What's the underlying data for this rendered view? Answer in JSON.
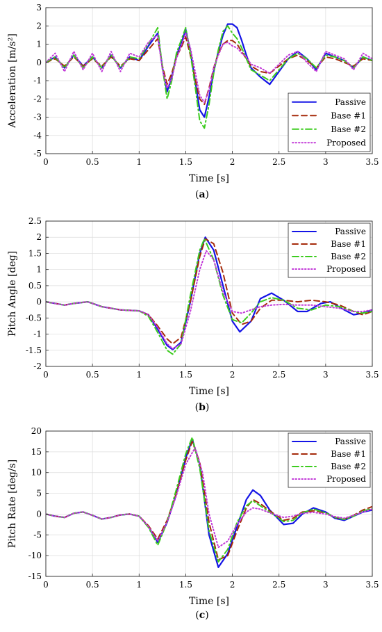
{
  "figure": {
    "colors": {
      "Passive": "#1414e6",
      "Base #1": "#a52a0a",
      "Base #2": "#3ccc1e",
      "Proposed": "#c23ad8"
    },
    "styles": {
      "Passive": "solid",
      "Base #1": "dashed",
      "Base #2": "dashdot",
      "Proposed": "dotted"
    }
  },
  "chart_data": [
    {
      "type": "line",
      "caption_open": "(",
      "caption_letter": "a",
      "caption_close": ")",
      "xlabel": "Time [s]",
      "ylabel": "Acceleration [m/s²]",
      "xlim": [
        0,
        3.5
      ],
      "ylim": [
        -5,
        3
      ],
      "xticks": [
        0,
        0.5,
        1,
        1.5,
        2,
        2.5,
        3,
        3.5
      ],
      "yticks": [
        -5,
        -4,
        -3,
        -2,
        -1,
        0,
        1,
        2,
        3
      ],
      "grid": true,
      "legend_position": "bottom-right",
      "series": [
        {
          "name": "Passive",
          "x": [
            0,
            0.1,
            0.2,
            0.3,
            0.4,
            0.5,
            0.6,
            0.7,
            0.8,
            0.9,
            1.0,
            1.1,
            1.2,
            1.25,
            1.3,
            1.35,
            1.4,
            1.45,
            1.5,
            1.55,
            1.6,
            1.65,
            1.7,
            1.75,
            1.8,
            1.85,
            1.9,
            1.95,
            2.0,
            2.05,
            2.1,
            2.15,
            2.2,
            2.3,
            2.4,
            2.5,
            2.6,
            2.7,
            2.8,
            2.9,
            3.0,
            3.1,
            3.2,
            3.3,
            3.4,
            3.5
          ],
          "y": [
            0,
            0.3,
            -0.3,
            0.4,
            -0.2,
            0.3,
            -0.3,
            0.4,
            -0.3,
            0.3,
            0.1,
            0.9,
            1.6,
            -0.3,
            -1.6,
            -0.8,
            0.4,
            1.0,
            1.8,
            0.6,
            -1.0,
            -2.6,
            -3.0,
            -1.9,
            -0.5,
            0.6,
            1.5,
            2.1,
            2.1,
            1.9,
            1.2,
            0.4,
            -0.3,
            -0.8,
            -1.2,
            -0.5,
            0.2,
            0.6,
            0.2,
            -0.4,
            0.5,
            0.3,
            0.1,
            -0.3,
            0.3,
            0.1
          ]
        },
        {
          "name": "Base #1",
          "x": [
            0,
            0.1,
            0.2,
            0.3,
            0.4,
            0.5,
            0.6,
            0.7,
            0.8,
            0.9,
            1.0,
            1.1,
            1.2,
            1.25,
            1.3,
            1.35,
            1.4,
            1.45,
            1.5,
            1.55,
            1.6,
            1.65,
            1.7,
            1.75,
            1.8,
            1.85,
            1.9,
            1.95,
            2.0,
            2.05,
            2.1,
            2.15,
            2.2,
            2.3,
            2.4,
            2.5,
            2.6,
            2.7,
            2.8,
            2.9,
            3.0,
            3.1,
            3.2,
            3.3,
            3.4,
            3.5
          ],
          "y": [
            0,
            0.2,
            -0.2,
            0.3,
            -0.2,
            0.2,
            -0.2,
            0.3,
            -0.2,
            0.2,
            0.1,
            0.7,
            1.3,
            -0.2,
            -1.2,
            -0.6,
            0.3,
            0.8,
            1.4,
            0.4,
            -0.9,
            -2.0,
            -2.3,
            -1.4,
            -0.3,
            0.5,
            1.0,
            1.2,
            1.2,
            1.0,
            0.6,
            0.2,
            -0.2,
            -0.5,
            -0.6,
            -0.2,
            0.2,
            0.4,
            0.1,
            -0.3,
            0.3,
            0.2,
            0.0,
            -0.2,
            0.2,
            0.1
          ]
        },
        {
          "name": "Base #2",
          "x": [
            0,
            0.1,
            0.2,
            0.3,
            0.4,
            0.5,
            0.6,
            0.7,
            0.8,
            0.9,
            1.0,
            1.1,
            1.2,
            1.25,
            1.3,
            1.35,
            1.4,
            1.45,
            1.5,
            1.55,
            1.6,
            1.65,
            1.7,
            1.75,
            1.8,
            1.85,
            1.9,
            1.95,
            2.0,
            2.05,
            2.1,
            2.15,
            2.2,
            2.3,
            2.4,
            2.5,
            2.6,
            2.7,
            2.8,
            2.9,
            3.0,
            3.1,
            3.2,
            3.3,
            3.4,
            3.5
          ],
          "y": [
            0,
            0.3,
            -0.3,
            0.4,
            -0.3,
            0.3,
            -0.3,
            0.4,
            -0.3,
            0.3,
            0.2,
            1.0,
            1.9,
            -0.3,
            -2.0,
            -1.0,
            0.5,
            1.2,
            1.9,
            0.5,
            -1.3,
            -3.2,
            -3.6,
            -2.3,
            -0.6,
            0.7,
            1.7,
            2.0,
            1.6,
            1.3,
            0.8,
            0.2,
            -0.4,
            -0.7,
            -1.0,
            -0.4,
            0.2,
            0.5,
            0.2,
            -0.3,
            0.4,
            0.3,
            0.1,
            -0.3,
            0.3,
            0.1
          ]
        },
        {
          "name": "Proposed",
          "x": [
            0,
            0.1,
            0.2,
            0.3,
            0.4,
            0.5,
            0.6,
            0.7,
            0.8,
            0.9,
            1.0,
            1.1,
            1.2,
            1.25,
            1.3,
            1.35,
            1.4,
            1.45,
            1.5,
            1.55,
            1.6,
            1.65,
            1.7,
            1.75,
            1.8,
            1.85,
            1.9,
            1.95,
            2.0,
            2.05,
            2.1,
            2.15,
            2.2,
            2.3,
            2.4,
            2.5,
            2.6,
            2.7,
            2.8,
            2.9,
            3.0,
            3.1,
            3.2,
            3.3,
            3.4,
            3.5
          ],
          "y": [
            0,
            0.5,
            -0.5,
            0.6,
            -0.4,
            0.5,
            -0.5,
            0.6,
            -0.5,
            0.5,
            0.3,
            1.1,
            1.5,
            -0.4,
            -1.4,
            -0.9,
            0.2,
            0.9,
            1.6,
            0.8,
            -0.5,
            -1.8,
            -2.2,
            -1.5,
            -0.3,
            0.4,
            1.0,
            1.1,
            0.9,
            0.8,
            0.5,
            0.3,
            -0.1,
            -0.3,
            -0.6,
            -0.1,
            0.4,
            0.6,
            0.0,
            -0.5,
            0.6,
            0.4,
            0.2,
            -0.4,
            0.5,
            0.2
          ]
        }
      ]
    },
    {
      "type": "line",
      "caption_open": "(",
      "caption_letter": "b",
      "caption_close": ")",
      "xlabel": "Time [s]",
      "ylabel": "Pitch Angle [deg]",
      "xlim": [
        0,
        3.5
      ],
      "ylim": [
        -2,
        2.5
      ],
      "xticks": [
        0,
        0.5,
        1,
        1.5,
        2,
        2.5,
        3,
        3.5
      ],
      "yticks": [
        -2,
        -1.5,
        -1,
        -0.5,
        0,
        0.5,
        1,
        1.5,
        2,
        2.5
      ],
      "grid": true,
      "legend_position": "top-right",
      "series": [
        {
          "name": "Passive",
          "x": [
            0,
            0.1,
            0.2,
            0.3,
            0.45,
            0.6,
            0.8,
            1.0,
            1.1,
            1.2,
            1.3,
            1.36,
            1.45,
            1.55,
            1.65,
            1.71,
            1.8,
            1.9,
            2.0,
            2.08,
            2.2,
            2.3,
            2.42,
            2.55,
            2.7,
            2.8,
            2.95,
            3.05,
            3.2,
            3.3,
            3.4,
            3.5
          ],
          "y": [
            0,
            -0.05,
            -0.1,
            -0.05,
            0.0,
            -0.15,
            -0.25,
            -0.28,
            -0.4,
            -0.85,
            -1.35,
            -1.48,
            -1.25,
            0.0,
            1.5,
            2.0,
            1.6,
            0.5,
            -0.6,
            -0.93,
            -0.6,
            0.1,
            0.27,
            0.05,
            -0.3,
            -0.3,
            -0.05,
            0.0,
            -0.25,
            -0.4,
            -0.35,
            -0.25
          ]
        },
        {
          "name": "Base #1",
          "x": [
            0,
            0.1,
            0.2,
            0.3,
            0.45,
            0.6,
            0.8,
            1.0,
            1.1,
            1.2,
            1.3,
            1.36,
            1.45,
            1.55,
            1.65,
            1.71,
            1.8,
            1.9,
            2.0,
            2.1,
            2.2,
            2.3,
            2.42,
            2.55,
            2.7,
            2.85,
            3.0,
            3.15,
            3.3,
            3.4,
            3.5
          ],
          "y": [
            0,
            -0.05,
            -0.1,
            -0.05,
            0.0,
            -0.15,
            -0.25,
            -0.28,
            -0.4,
            -0.75,
            -1.15,
            -1.3,
            -1.1,
            0.0,
            1.4,
            1.95,
            1.8,
            0.9,
            -0.35,
            -0.7,
            -0.6,
            -0.2,
            0.05,
            0.05,
            0.0,
            0.05,
            0.0,
            -0.1,
            -0.3,
            -0.4,
            -0.3
          ]
        },
        {
          "name": "Base #2",
          "x": [
            0,
            0.1,
            0.2,
            0.3,
            0.45,
            0.6,
            0.8,
            1.0,
            1.1,
            1.2,
            1.3,
            1.36,
            1.45,
            1.55,
            1.65,
            1.7,
            1.8,
            1.9,
            2.0,
            2.1,
            2.2,
            2.3,
            2.42,
            2.55,
            2.7,
            2.85,
            3.0,
            3.15,
            3.3,
            3.4,
            3.5
          ],
          "y": [
            0,
            -0.05,
            -0.1,
            -0.05,
            0.0,
            -0.15,
            -0.25,
            -0.28,
            -0.45,
            -0.95,
            -1.5,
            -1.62,
            -1.3,
            0.2,
            1.6,
            1.95,
            1.3,
            0.2,
            -0.55,
            -0.65,
            -0.35,
            0.0,
            0.13,
            0.05,
            -0.2,
            -0.25,
            -0.1,
            -0.15,
            -0.3,
            -0.35,
            -0.3
          ]
        },
        {
          "name": "Proposed",
          "x": [
            0,
            0.1,
            0.2,
            0.3,
            0.45,
            0.6,
            0.8,
            1.0,
            1.1,
            1.2,
            1.3,
            1.36,
            1.45,
            1.55,
            1.65,
            1.72,
            1.8,
            1.9,
            2.0,
            2.1,
            2.2,
            2.3,
            2.42,
            2.55,
            2.7,
            2.85,
            3.0,
            3.15,
            3.3,
            3.4,
            3.5
          ],
          "y": [
            0,
            -0.05,
            -0.1,
            -0.05,
            0.0,
            -0.15,
            -0.25,
            -0.28,
            -0.4,
            -0.8,
            -1.3,
            -1.45,
            -1.3,
            -0.3,
            1.0,
            1.58,
            1.3,
            0.3,
            -0.3,
            -0.35,
            -0.25,
            -0.15,
            -0.1,
            -0.08,
            -0.1,
            -0.1,
            -0.15,
            -0.2,
            -0.3,
            -0.3,
            -0.25
          ]
        }
      ]
    },
    {
      "type": "line",
      "caption_open": "(",
      "caption_letter": "c",
      "caption_close": ")",
      "xlabel": "Time [s]",
      "ylabel": "Pitch Rate [deg/s]",
      "xlim": [
        0,
        3.5
      ],
      "ylim": [
        -15,
        20
      ],
      "xticks": [
        0,
        0.5,
        1,
        1.5,
        2,
        2.5,
        3,
        3.5
      ],
      "yticks": [
        -15,
        -10,
        -5,
        0,
        5,
        10,
        15,
        20
      ],
      "grid": true,
      "legend_position": "top-right",
      "series": [
        {
          "name": "Passive",
          "x": [
            0,
            0.1,
            0.2,
            0.3,
            0.4,
            0.5,
            0.6,
            0.7,
            0.8,
            0.9,
            1.0,
            1.1,
            1.2,
            1.3,
            1.4,
            1.5,
            1.57,
            1.65,
            1.75,
            1.85,
            1.95,
            2.05,
            2.15,
            2.22,
            2.3,
            2.4,
            2.55,
            2.65,
            2.75,
            2.87,
            3.0,
            3.1,
            3.2,
            3.3,
            3.4,
            3.5
          ],
          "y": [
            0,
            -0.5,
            -0.8,
            0.2,
            0.5,
            -0.3,
            -1.2,
            -0.8,
            -0.2,
            0.0,
            -0.5,
            -3.0,
            -6.8,
            -2.0,
            5.0,
            13.5,
            18.0,
            12.0,
            -5.0,
            -12.8,
            -9.5,
            -3.0,
            3.5,
            5.8,
            4.5,
            1.0,
            -2.5,
            -2.2,
            0.0,
            1.5,
            0.5,
            -1.0,
            -1.5,
            -0.5,
            0.5,
            1.0
          ]
        },
        {
          "name": "Base #1",
          "x": [
            0,
            0.1,
            0.2,
            0.3,
            0.4,
            0.5,
            0.6,
            0.7,
            0.8,
            0.9,
            1.0,
            1.1,
            1.2,
            1.3,
            1.4,
            1.5,
            1.57,
            1.65,
            1.75,
            1.85,
            1.95,
            2.05,
            2.15,
            2.22,
            2.3,
            2.4,
            2.55,
            2.65,
            2.75,
            2.87,
            3.0,
            3.1,
            3.2,
            3.3,
            3.4,
            3.5
          ],
          "y": [
            0,
            -0.5,
            -0.8,
            0.2,
            0.5,
            -0.3,
            -1.2,
            -0.8,
            -0.2,
            0.0,
            -0.5,
            -2.8,
            -6.0,
            -1.5,
            5.0,
            13.0,
            17.5,
            12.5,
            -2.0,
            -11.0,
            -10.0,
            -4.0,
            1.5,
            3.5,
            2.5,
            0.8,
            -1.5,
            -1.0,
            0.5,
            0.8,
            0.3,
            -0.8,
            -1.2,
            -0.3,
            1.0,
            1.8
          ]
        },
        {
          "name": "Base #2",
          "x": [
            0,
            0.1,
            0.2,
            0.3,
            0.4,
            0.5,
            0.6,
            0.7,
            0.8,
            0.9,
            1.0,
            1.1,
            1.2,
            1.3,
            1.4,
            1.5,
            1.57,
            1.65,
            1.75,
            1.85,
            1.95,
            2.05,
            2.15,
            2.22,
            2.3,
            2.4,
            2.55,
            2.65,
            2.75,
            2.87,
            3.0,
            3.1,
            3.2,
            3.3,
            3.4,
            3.5
          ],
          "y": [
            0,
            -0.5,
            -0.8,
            0.2,
            0.5,
            -0.3,
            -1.2,
            -0.8,
            -0.2,
            0.0,
            -0.5,
            -3.2,
            -7.5,
            -2.0,
            6.0,
            14.5,
            18.5,
            11.0,
            -4.0,
            -11.5,
            -8.5,
            -2.0,
            2.0,
            3.2,
            2.0,
            0.5,
            -1.8,
            -1.5,
            0.3,
            1.2,
            0.3,
            -0.8,
            -1.3,
            -0.5,
            0.8,
            1.3
          ]
        },
        {
          "name": "Proposed",
          "x": [
            0,
            0.1,
            0.2,
            0.3,
            0.4,
            0.5,
            0.6,
            0.7,
            0.8,
            0.9,
            1.0,
            1.1,
            1.2,
            1.3,
            1.4,
            1.5,
            1.6,
            1.68,
            1.75,
            1.85,
            1.95,
            2.05,
            2.15,
            2.22,
            2.3,
            2.4,
            2.55,
            2.65,
            2.75,
            2.87,
            3.0,
            3.1,
            3.2,
            3.3,
            3.4,
            3.5
          ],
          "y": [
            0,
            -0.5,
            -0.8,
            0.2,
            0.5,
            -0.3,
            -1.2,
            -0.8,
            -0.2,
            0.0,
            -0.5,
            -3.0,
            -6.5,
            -2.0,
            4.5,
            12.0,
            16.0,
            10.0,
            0.0,
            -8.0,
            -6.5,
            -2.5,
            0.5,
            1.5,
            1.2,
            0.3,
            -0.8,
            -0.5,
            0.2,
            0.4,
            0.0,
            -0.6,
            -1.0,
            -0.3,
            0.5,
            1.2
          ]
        }
      ]
    }
  ]
}
